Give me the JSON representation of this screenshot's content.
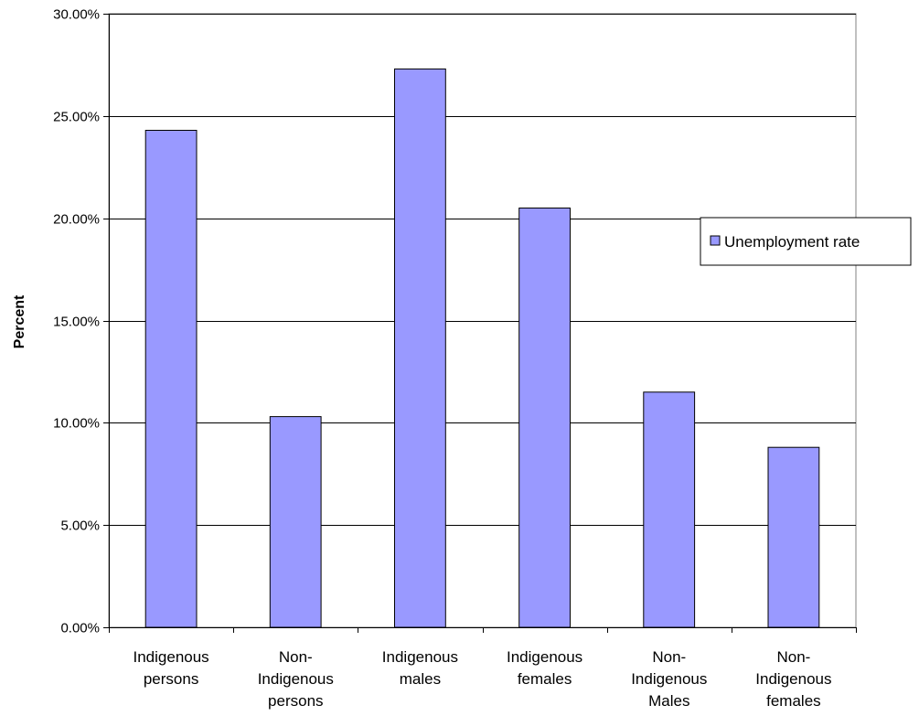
{
  "chart_data": {
    "type": "bar",
    "ylabel": "Percent",
    "xlabel": "",
    "ylim": [
      0,
      30
    ],
    "yticks": [
      0,
      5,
      10,
      15,
      20,
      25,
      30
    ],
    "ytick_labels": [
      "0.00%",
      "5.00%",
      "10.00%",
      "15.00%",
      "20.00%",
      "25.00%",
      "30.00%"
    ],
    "grid": "horizontal",
    "legend_position": "right",
    "categories": [
      [
        "Indigenous",
        "persons"
      ],
      [
        "Non-",
        "Indigenous",
        "persons"
      ],
      [
        "Indigenous",
        "males"
      ],
      [
        "Indigenous",
        "females"
      ],
      [
        "Non-",
        "Indigenous",
        "Males"
      ],
      [
        "Non-",
        "Indigenous",
        "females"
      ]
    ],
    "series": [
      {
        "name": "Unemployment rate",
        "color": "#9999ff",
        "values": [
          24.3,
          10.3,
          27.3,
          20.5,
          11.5,
          8.8
        ]
      }
    ]
  }
}
